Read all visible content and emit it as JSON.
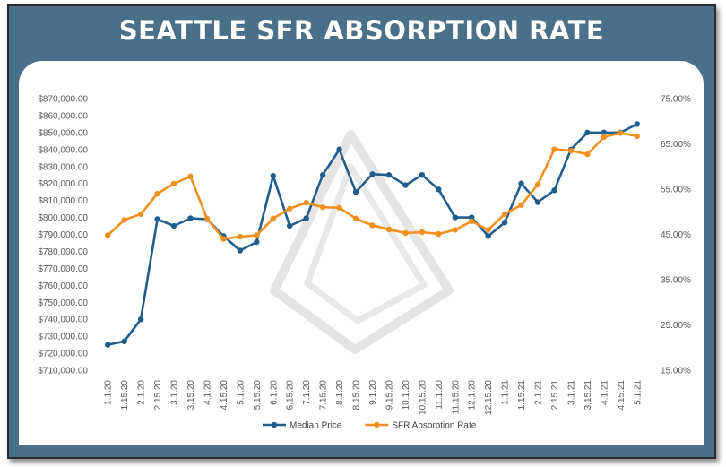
{
  "title": "SEATTLE SFR ABSORPTION RATE",
  "colors": {
    "banner": "#4a7089",
    "median": "#1f5d8c",
    "absorption": "#f0901e",
    "watermark": "#d9d9d9"
  },
  "chart_data": {
    "type": "line",
    "title": "SEATTLE SFR ABSORPTION RATE",
    "categories": [
      "1.1.20",
      "1.15.20",
      "2.1.20",
      "2.15.20",
      "3.1.20",
      "3.15.20",
      "4.1.20",
      "4.15.20",
      "5.1.20",
      "5.15.20",
      "6.1.20",
      "6.15.20",
      "7.1.20",
      "7.15.20",
      "8.1.20",
      "8.15.20",
      "9.1.20",
      "9.15.20",
      "10.1.20",
      "10.15.20",
      "11.1.20",
      "11.15.20",
      "12.1.20",
      "12.15.20",
      "1.1.21",
      "1.15.21",
      "2.1.21",
      "2.15.21",
      "3.1.21",
      "3.15.21",
      "4.1.21",
      "4.15.21",
      "5.1.21"
    ],
    "series": [
      {
        "name": "Median Price",
        "axis": "left",
        "color": "#1f5d8c",
        "values": [
          725000,
          727000,
          740000,
          799000,
          795000,
          799500,
          799000,
          789000,
          780500,
          785500,
          824500,
          795000,
          799500,
          825000,
          840000,
          815000,
          825500,
          825000,
          819000,
          825000,
          816500,
          800000,
          800000,
          789000,
          797000,
          820000,
          809000,
          816000,
          840000,
          850000,
          850000,
          850000,
          855000
        ]
      },
      {
        "name": "SFR Absorption Rate",
        "axis": "right",
        "color": "#f0901e",
        "values": [
          44.8,
          48.2,
          49.5,
          54.0,
          56.2,
          57.8,
          48.5,
          44.0,
          44.5,
          44.8,
          48.5,
          50.7,
          52.0,
          51.0,
          50.9,
          48.5,
          47.0,
          46.1,
          45.3,
          45.5,
          45.1,
          46.0,
          47.9,
          46.0,
          49.5,
          51.5,
          56.0,
          63.8,
          63.5,
          62.7,
          66.5,
          67.4,
          66.7
        ]
      }
    ],
    "y_left": {
      "min": 710000,
      "max": 870000,
      "step": 10000,
      "tick_labels": [
        "$870,000.00",
        "$860,000.00",
        "$850,000.00",
        "$840,000.00",
        "$830,000.00",
        "$820,000.00",
        "$810,000.00",
        "$800,000.00",
        "$790,000.00",
        "$780,000.00",
        "$770,000.00",
        "$760,000.00",
        "$750,000.00",
        "$740,000.00",
        "$730,000.00",
        "$720,000.00",
        "$710,000.00"
      ]
    },
    "y_right": {
      "min": 15,
      "max": 75,
      "step": 10,
      "tick_labels": [
        "75.00%",
        "65.00%",
        "55.00%",
        "45.00%",
        "35.00%",
        "25.00%",
        "15.00%"
      ]
    },
    "legend_position": "bottom",
    "grid": false
  }
}
